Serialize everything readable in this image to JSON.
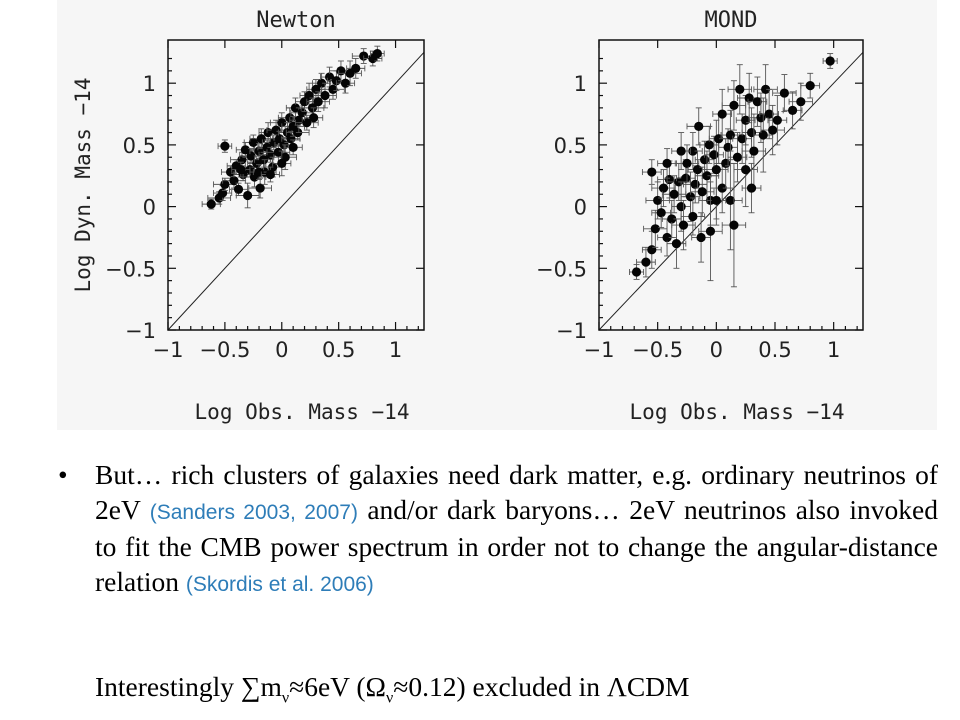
{
  "chart_data": [
    {
      "type": "scatter",
      "title": "Newton",
      "xlabel": "Log Obs. Mass −14",
      "ylabel": "Log Dyn. Mass −14",
      "xlim": [
        -1,
        1.25
      ],
      "ylim": [
        -1,
        1.35
      ],
      "xticks": [
        "−1",
        "−0.5",
        "0",
        "0.5",
        "1"
      ],
      "yticks": [
        "−1",
        "−0.5",
        "0",
        "0.5",
        "1"
      ],
      "reference_line": "y = x",
      "points": [
        [
          -0.62,
          0.02,
          0.08,
          0.04
        ],
        [
          -0.55,
          0.07,
          0.1,
          0.05
        ],
        [
          -0.52,
          0.11,
          0.08,
          0.06
        ],
        [
          -0.5,
          0.18,
          0.1,
          0.05
        ],
        [
          -0.5,
          0.49,
          0.06,
          0.05
        ],
        [
          -0.45,
          0.28,
          0.08,
          0.05
        ],
        [
          -0.42,
          0.21,
          0.1,
          0.06
        ],
        [
          -0.4,
          0.33,
          0.08,
          0.05
        ],
        [
          -0.38,
          0.14,
          0.08,
          0.05
        ],
        [
          -0.35,
          0.38,
          0.1,
          0.06
        ],
        [
          -0.34,
          0.26,
          0.08,
          0.05
        ],
        [
          -0.32,
          0.46,
          0.08,
          0.06
        ],
        [
          -0.3,
          0.09,
          0.1,
          0.1
        ],
        [
          -0.28,
          0.3,
          0.08,
          0.06
        ],
        [
          -0.27,
          0.41,
          0.1,
          0.06
        ],
        [
          -0.25,
          0.52,
          0.08,
          0.06
        ],
        [
          -0.24,
          0.24,
          0.1,
          0.08
        ],
        [
          -0.22,
          0.35,
          0.08,
          0.06
        ],
        [
          -0.2,
          0.45,
          0.08,
          0.06
        ],
        [
          -0.19,
          0.15,
          0.1,
          0.08
        ],
        [
          -0.18,
          0.55,
          0.1,
          0.08
        ],
        [
          -0.16,
          0.38,
          0.08,
          0.06
        ],
        [
          -0.15,
          0.28,
          0.1,
          0.1
        ],
        [
          -0.13,
          0.48,
          0.08,
          0.06
        ],
        [
          -0.12,
          0.6,
          0.08,
          0.08
        ],
        [
          -0.1,
          0.42,
          0.1,
          0.06
        ],
        [
          -0.08,
          0.32,
          0.08,
          0.08
        ],
        [
          -0.07,
          0.52,
          0.1,
          0.06
        ],
        [
          -0.05,
          0.62,
          0.08,
          0.08
        ],
        [
          -0.03,
          0.44,
          0.1,
          0.1
        ],
        [
          -0.02,
          0.55,
          0.08,
          0.06
        ],
        [
          0.0,
          0.68,
          0.1,
          0.08
        ],
        [
          0.02,
          0.5,
          0.08,
          0.06
        ],
        [
          0.03,
          0.4,
          0.1,
          0.1
        ],
        [
          0.05,
          0.6,
          0.08,
          0.08
        ],
        [
          0.07,
          0.72,
          0.1,
          0.08
        ],
        [
          0.08,
          0.55,
          0.08,
          0.06
        ],
        [
          0.1,
          0.65,
          0.1,
          0.08
        ],
        [
          0.12,
          0.8,
          0.08,
          0.08
        ],
        [
          0.14,
          0.6,
          0.1,
          0.06
        ],
        [
          0.15,
          0.7,
          0.08,
          0.1
        ],
        [
          0.18,
          0.76,
          0.1,
          0.08
        ],
        [
          0.2,
          0.85,
          0.08,
          0.08
        ],
        [
          0.22,
          0.68,
          0.1,
          0.06
        ],
        [
          0.24,
          0.9,
          0.08,
          0.1
        ],
        [
          0.27,
          0.8,
          0.1,
          0.08
        ],
        [
          0.3,
          0.95,
          0.08,
          0.08
        ],
        [
          0.32,
          0.85,
          0.1,
          0.08
        ],
        [
          0.35,
          1.0,
          0.08,
          0.08
        ],
        [
          0.38,
          0.9,
          0.1,
          0.1
        ],
        [
          0.42,
          1.05,
          0.08,
          0.08
        ],
        [
          0.45,
          0.95,
          0.1,
          0.08
        ],
        [
          0.48,
          1.02,
          0.08,
          0.08
        ],
        [
          0.52,
          1.1,
          0.1,
          0.08
        ],
        [
          0.56,
          1.0,
          0.08,
          0.08
        ],
        [
          0.6,
          1.08,
          0.1,
          0.1
        ],
        [
          0.65,
          1.12,
          0.08,
          0.08
        ],
        [
          0.72,
          1.22,
          0.1,
          0.06
        ],
        [
          0.8,
          1.2,
          0.08,
          0.06
        ],
        [
          0.84,
          1.24,
          0.06,
          0.06
        ],
        [
          -0.2,
          0.28,
          0.08,
          0.06
        ],
        [
          -0.1,
          0.26,
          0.08,
          0.06
        ],
        [
          0.1,
          0.48,
          0.08,
          0.06
        ],
        [
          0.0,
          0.35,
          0.08,
          0.1
        ],
        [
          0.28,
          0.72,
          0.08,
          0.08
        ],
        [
          -0.36,
          0.3,
          0.08,
          0.06
        ]
      ]
    },
    {
      "type": "scatter",
      "title": "MOND",
      "xlabel": "Log Obs. Mass −14",
      "ylabel": "",
      "xlim": [
        -1,
        1.25
      ],
      "ylim": [
        -1,
        1.35
      ],
      "xticks": [
        "−1",
        "−0.5",
        "0",
        "0.5",
        "1"
      ],
      "yticks": [
        "−1",
        "−0.5",
        "0",
        "0.5",
        "1"
      ],
      "reference_line": "y = x",
      "points": [
        [
          -0.68,
          -0.53,
          0.06,
          0.06
        ],
        [
          -0.6,
          -0.45,
          0.08,
          0.12
        ],
        [
          -0.55,
          -0.35,
          0.08,
          0.15
        ],
        [
          -0.55,
          0.28,
          0.08,
          0.1
        ],
        [
          -0.52,
          -0.18,
          0.1,
          0.15
        ],
        [
          -0.5,
          0.05,
          0.1,
          0.15
        ],
        [
          -0.47,
          -0.05,
          0.08,
          0.12
        ],
        [
          -0.45,
          0.15,
          0.1,
          0.15
        ],
        [
          -0.42,
          -0.25,
          0.08,
          0.15
        ],
        [
          -0.4,
          0.22,
          0.1,
          0.15
        ],
        [
          -0.38,
          -0.1,
          0.08,
          0.15
        ],
        [
          -0.36,
          0.1,
          0.1,
          0.15
        ],
        [
          -0.34,
          -0.3,
          0.08,
          0.2
        ],
        [
          -0.32,
          0.2,
          0.1,
          0.15
        ],
        [
          -0.3,
          0.0,
          0.08,
          0.2
        ],
        [
          -0.28,
          -0.15,
          0.1,
          0.2
        ],
        [
          -0.26,
          0.23,
          0.08,
          0.15
        ],
        [
          -0.25,
          0.35,
          0.1,
          0.15
        ],
        [
          -0.22,
          0.08,
          0.08,
          0.2
        ],
        [
          -0.2,
          -0.08,
          0.1,
          0.15
        ],
        [
          -0.2,
          0.45,
          0.08,
          0.15
        ],
        [
          -0.18,
          0.18,
          0.1,
          0.15
        ],
        [
          -0.16,
          0.3,
          0.08,
          0.15
        ],
        [
          -0.15,
          0.65,
          0.1,
          0.15
        ],
        [
          -0.13,
          -0.25,
          0.08,
          0.2
        ],
        [
          -0.12,
          0.12,
          0.1,
          0.2
        ],
        [
          -0.1,
          0.38,
          0.08,
          0.15
        ],
        [
          -0.08,
          0.25,
          0.1,
          0.2
        ],
        [
          -0.06,
          0.5,
          0.08,
          0.15
        ],
        [
          -0.05,
          0.05,
          0.1,
          0.2
        ],
        [
          -0.02,
          0.42,
          0.08,
          0.15
        ],
        [
          0.0,
          0.3,
          0.1,
          0.4
        ],
        [
          0.02,
          0.55,
          0.08,
          0.2
        ],
        [
          0.05,
          0.15,
          0.1,
          0.2
        ],
        [
          0.05,
          0.75,
          0.08,
          0.2
        ],
        [
          0.08,
          0.35,
          0.1,
          0.2
        ],
        [
          0.1,
          0.48,
          0.08,
          0.15
        ],
        [
          0.12,
          0.05,
          0.1,
          0.4
        ],
        [
          0.12,
          0.58,
          0.08,
          0.2
        ],
        [
          0.15,
          0.82,
          0.1,
          0.2
        ],
        [
          0.18,
          0.4,
          0.08,
          0.2
        ],
        [
          0.2,
          0.95,
          0.1,
          0.2
        ],
        [
          0.22,
          0.55,
          0.08,
          0.2
        ],
        [
          0.25,
          0.3,
          0.1,
          0.3
        ],
        [
          0.25,
          0.7,
          0.08,
          0.2
        ],
        [
          0.28,
          0.88,
          0.1,
          0.2
        ],
        [
          0.3,
          0.6,
          0.08,
          0.2
        ],
        [
          0.32,
          0.45,
          0.1,
          0.3
        ],
        [
          0.35,
          0.85,
          0.08,
          0.2
        ],
        [
          0.38,
          0.72,
          0.1,
          0.2
        ],
        [
          0.4,
          0.58,
          0.08,
          0.3
        ],
        [
          0.42,
          0.95,
          0.1,
          0.2
        ],
        [
          0.45,
          0.75,
          0.08,
          0.2
        ],
        [
          0.48,
          0.62,
          0.1,
          0.2
        ],
        [
          0.52,
          0.7,
          0.08,
          0.2
        ],
        [
          0.58,
          0.92,
          0.1,
          0.15
        ],
        [
          0.65,
          0.78,
          0.08,
          0.15
        ],
        [
          0.72,
          0.85,
          0.1,
          0.15
        ],
        [
          0.8,
          0.98,
          0.08,
          0.1
        ],
        [
          0.97,
          1.18,
          0.06,
          0.06
        ],
        [
          -0.05,
          -0.2,
          0.1,
          0.4
        ],
        [
          0.15,
          -0.15,
          0.1,
          0.5
        ],
        [
          0.0,
          0.05,
          0.08,
          0.2
        ],
        [
          -0.3,
          0.45,
          0.08,
          0.15
        ],
        [
          0.3,
          0.15,
          0.08,
          0.2
        ],
        [
          -0.42,
          0.35,
          0.08,
          0.12
        ]
      ]
    }
  ],
  "text": {
    "bullet_symbol": "•",
    "bullet_part1": "But… rich clusters of galaxies need dark matter, e.g. ordinary neutrinos of 2eV ",
    "cite1": "(Sanders 2003, 2007)",
    "bullet_part2": " and/or dark baryons… 2eV neutrinos also invoked to fit the CMB power spectrum in order not to change the angular-distance relation ",
    "cite2": "(Skordis et al. 2006)",
    "note_a": "Interestingly ∑m",
    "note_sub1": "ν",
    "note_b": "≈6eV (Ω",
    "note_sub2": "ν",
    "note_c": "≈0.12) excluded in ΛCDM"
  },
  "colors": {
    "figure_background": "#f6f6f6",
    "citation": "#2e7db8",
    "points": "#050505"
  }
}
